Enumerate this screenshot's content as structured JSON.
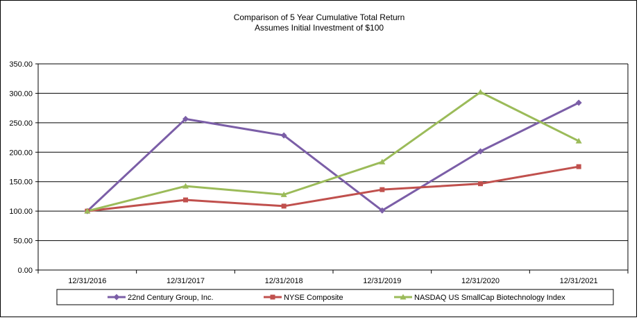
{
  "chart_data": {
    "type": "line",
    "title": "Comparison of 5 Year Cumulative Total Return",
    "subtitle": "Assumes Initial Investment of $100",
    "categories": [
      "12/31/2016",
      "12/31/2017",
      "12/31/2018",
      "12/31/2019",
      "12/31/2020",
      "12/31/2021"
    ],
    "ylim": [
      0,
      350
    ],
    "yticks": [
      "0.00",
      "50.00",
      "100.00",
      "150.00",
      "200.00",
      "250.00",
      "300.00",
      "350.00"
    ],
    "grid": true,
    "legend_position": "bottom",
    "series": [
      {
        "name": "22nd Century Group, Inc.",
        "color": "#7b5ea7",
        "marker": "diamond",
        "values": [
          100.0,
          256.5,
          228.5,
          101.0,
          201.5,
          284.0
        ]
      },
      {
        "name": "NYSE Composite",
        "color": "#c0504d",
        "marker": "square",
        "values": [
          100.0,
          119.0,
          108.5,
          136.5,
          146.5,
          175.5
        ]
      },
      {
        "name": "NASDAQ US SmallCap Biotechnology Index",
        "color": "#9bbb59",
        "marker": "triangle",
        "values": [
          100.0,
          142.5,
          128.0,
          183.5,
          302.0,
          219.0
        ]
      }
    ]
  }
}
